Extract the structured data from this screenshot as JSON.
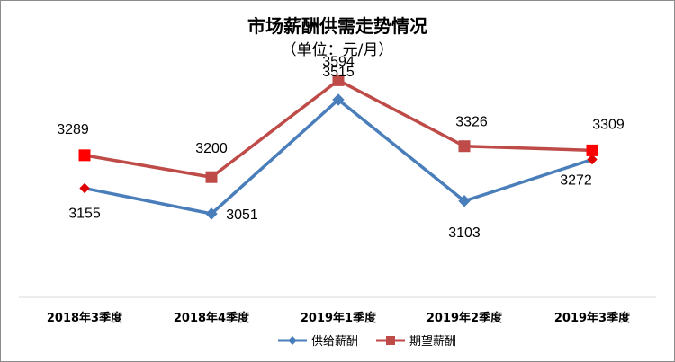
{
  "chart_data": {
    "type": "line",
    "title": "市场薪酬供需走势情况",
    "subtitle": "（单位：元/月）",
    "categories": [
      "2018年3季度",
      "2018年4季度",
      "2019年1季度",
      "2019年2季度",
      "2019年3季度"
    ],
    "series": [
      {
        "name": "供给薪酬",
        "values": [
          3155,
          3051,
          3515,
          3103,
          3272
        ],
        "color": "#4a7ebb",
        "marker": "diamond",
        "highlight_color": "#e00000",
        "highlight_points": [
          0,
          4
        ]
      },
      {
        "name": "期望薪酬",
        "values": [
          3289,
          3200,
          3594,
          3326,
          3309
        ],
        "color": "#be4b48",
        "marker": "square",
        "highlight_color": "#ff0000",
        "highlight_points": [
          0,
          4
        ]
      }
    ],
    "ylim": [
      2750,
      3650
    ],
    "grid": false,
    "legend_position": "bottom"
  }
}
